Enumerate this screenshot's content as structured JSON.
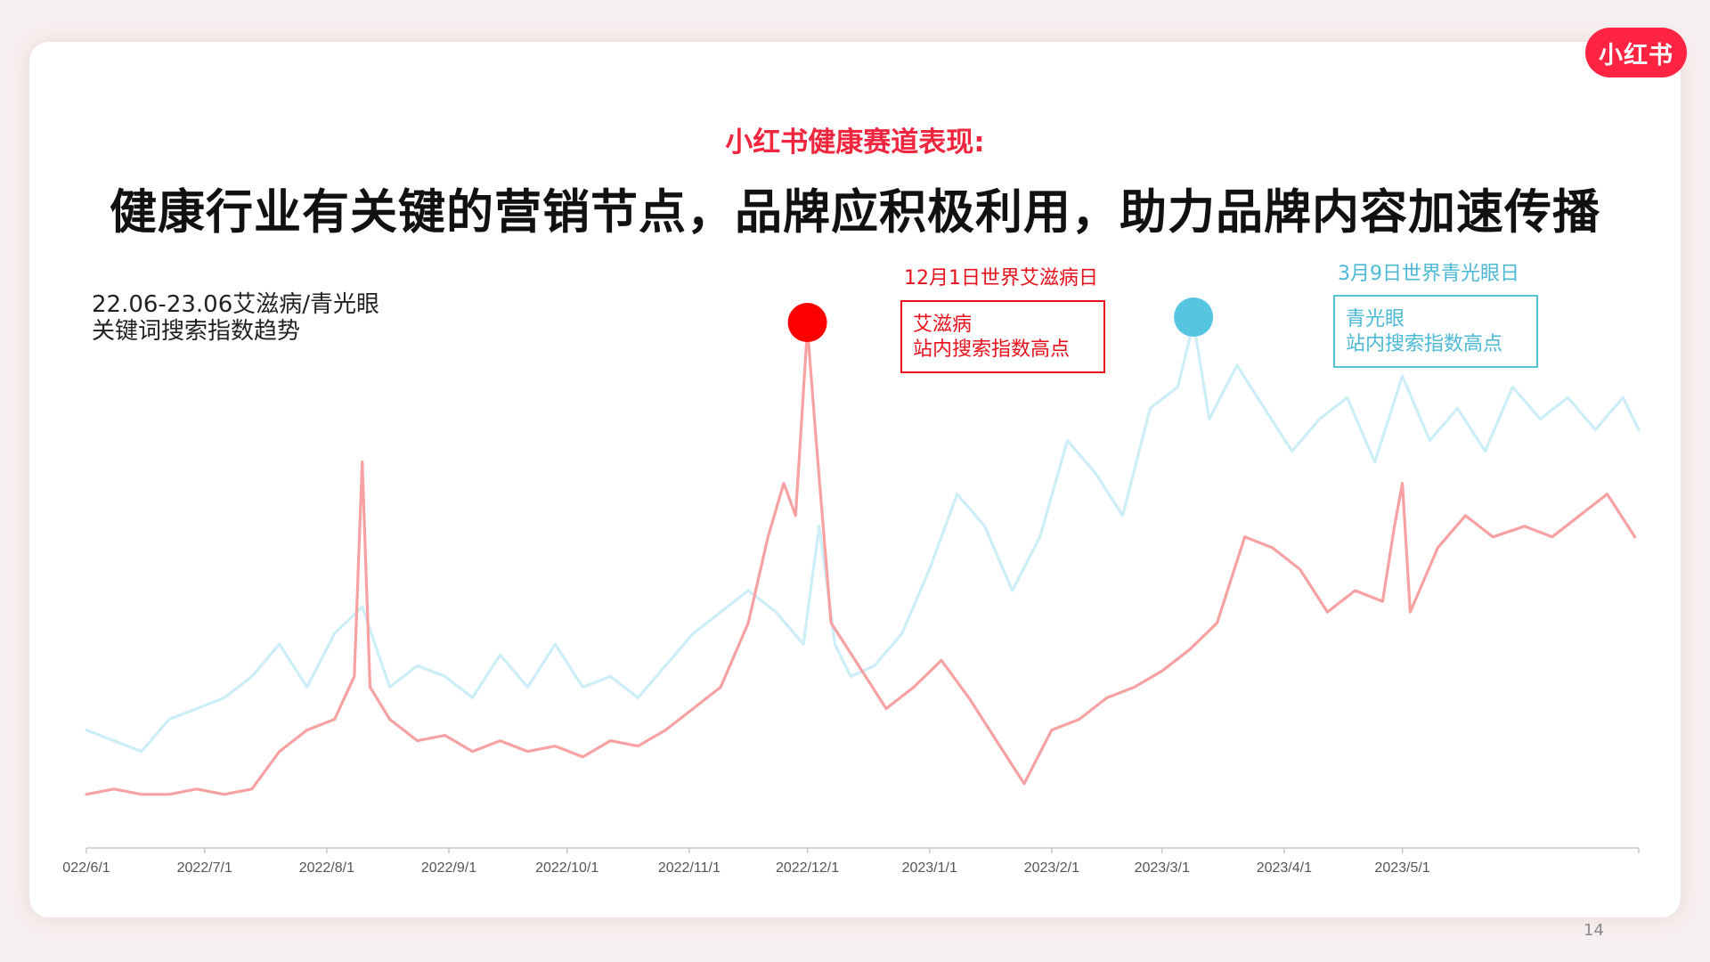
{
  "brand": {
    "logo_text": "小红书"
  },
  "header": {
    "subtitle": "小红书健康赛道表现:",
    "title": "健康行业有关键的营销节点，品牌应积极利用，助力品牌内容加速传播"
  },
  "chart_desc": [
    "22.06-23.06艾滋病/青光眼",
    "关键词搜索指数趋势"
  ],
  "annotations": [
    {
      "date_label": "12月1日世界艾滋病日",
      "box_lines": [
        "艾滋病",
        "站内搜索指数高点"
      ],
      "color": "#e8101a"
    },
    {
      "date_label": "3月9日世界青光眼日",
      "box_lines": [
        "青光眼",
        "站内搜索指数高点"
      ],
      "color": "#4bb9d6"
    }
  ],
  "page_number": "14",
  "chart_data": {
    "type": "line",
    "title": "22.06-23.06艾滋病/青光眼 关键词搜索指数趋势",
    "x_tick_labels": [
      "022/6/1",
      "2022/7/1",
      "2022/8/1",
      "2022/9/1",
      "2022/10/1",
      "2022/11/1",
      "2022/12/1",
      "2023/1/1",
      "2023/2/1",
      "2023/3/1",
      "2023/4/1",
      "2023/5/1"
    ],
    "x_ticks": [
      "2022-06-01",
      "2022-07-01",
      "2022-08-01",
      "2022-09-01",
      "2022-10-01",
      "2022-11-01",
      "2022-12-01",
      "2023-01-01",
      "2023-02-01",
      "2023-03-01",
      "2023-04-01",
      "2023-05-01"
    ],
    "xlim": [
      "2022-06-01",
      "2023-06-30"
    ],
    "ylim": [
      0,
      100
    ],
    "y_axis_visible": false,
    "grid": false,
    "legend": "none",
    "series": [
      {
        "color": "#f7a1a3",
        "dates": [
          "2022-06-01",
          "2022-06-08",
          "2022-06-15",
          "2022-06-22",
          "2022-06-29",
          "2022-07-06",
          "2022-07-13",
          "2022-07-20",
          "2022-07-27",
          "2022-08-03",
          "2022-08-08",
          "2022-08-10",
          "2022-08-12",
          "2022-08-17",
          "2022-08-24",
          "2022-08-31",
          "2022-09-07",
          "2022-09-14",
          "2022-09-21",
          "2022-09-28",
          "2022-10-05",
          "2022-10-12",
          "2022-10-19",
          "2022-10-26",
          "2022-11-02",
          "2022-11-09",
          "2022-11-16",
          "2022-11-21",
          "2022-11-25",
          "2022-11-28",
          "2022-12-01",
          "2022-12-03",
          "2022-12-07",
          "2022-12-14",
          "2022-12-21",
          "2022-12-28",
          "2023-01-04",
          "2023-01-11",
          "2023-01-18",
          "2023-01-25",
          "2023-02-01",
          "2023-02-08",
          "2023-02-15",
          "2023-02-22",
          "2023-03-01",
          "2023-03-08",
          "2023-03-15",
          "2023-03-22",
          "2023-03-29",
          "2023-04-05",
          "2023-04-12",
          "2023-04-19",
          "2023-04-26",
          "2023-04-29",
          "2023-05-01",
          "2023-05-03",
          "2023-05-10",
          "2023-05-17",
          "2023-05-24",
          "2023-06-01",
          "2023-06-08",
          "2023-06-15",
          "2023-06-22",
          "2023-06-29"
        ],
        "values": [
          10,
          11,
          10,
          10,
          11,
          10,
          11,
          18,
          22,
          24,
          32,
          72,
          30,
          24,
          20,
          21,
          18,
          20,
          18,
          19,
          17,
          20,
          19,
          22,
          26,
          30,
          42,
          58,
          68,
          62,
          97,
          78,
          42,
          34,
          26,
          30,
          35,
          28,
          20,
          12,
          22,
          24,
          28,
          30,
          33,
          37,
          42,
          58,
          56,
          52,
          44,
          48,
          46,
          60,
          68,
          44,
          56,
          62,
          58,
          60,
          58,
          62,
          66,
          58
        ]
      },
      {
        "color": "#cbeef7",
        "dates": [
          "2022-06-01",
          "2022-06-08",
          "2022-06-15",
          "2022-06-22",
          "2022-06-29",
          "2022-07-06",
          "2022-07-13",
          "2022-07-20",
          "2022-07-27",
          "2022-08-03",
          "2022-08-10",
          "2022-08-17",
          "2022-08-24",
          "2022-08-31",
          "2022-09-07",
          "2022-09-14",
          "2022-09-21",
          "2022-09-28",
          "2022-10-05",
          "2022-10-12",
          "2022-10-19",
          "2022-10-26",
          "2022-11-02",
          "2022-11-09",
          "2022-11-16",
          "2022-11-23",
          "2022-11-30",
          "2022-12-04",
          "2022-12-08",
          "2022-12-12",
          "2022-12-18",
          "2022-12-25",
          "2023-01-01",
          "2023-01-08",
          "2023-01-15",
          "2023-01-22",
          "2023-01-29",
          "2023-02-05",
          "2023-02-12",
          "2023-02-19",
          "2023-02-26",
          "2023-03-05",
          "2023-03-09",
          "2023-03-13",
          "2023-03-20",
          "2023-03-27",
          "2023-04-03",
          "2023-04-10",
          "2023-04-17",
          "2023-04-24",
          "2023-05-01",
          "2023-05-08",
          "2023-05-15",
          "2023-05-22",
          "2023-05-29",
          "2023-06-05",
          "2023-06-12",
          "2023-06-19",
          "2023-06-26",
          "2023-06-30"
        ],
        "values": [
          22,
          20,
          18,
          24,
          26,
          28,
          32,
          38,
          30,
          40,
          45,
          30,
          34,
          32,
          28,
          36,
          30,
          38,
          30,
          32,
          28,
          34,
          40,
          44,
          48,
          44,
          38,
          60,
          38,
          32,
          34,
          40,
          52,
          66,
          60,
          48,
          58,
          76,
          70,
          62,
          82,
          86,
          98,
          80,
          90,
          82,
          74,
          80,
          84,
          72,
          88,
          76,
          82,
          74,
          86,
          80,
          84,
          78,
          84,
          78
        ]
      }
    ],
    "markers": [
      {
        "series": 0,
        "date": "2022-12-01",
        "value": 97,
        "color": "#ff0000"
      },
      {
        "series": 1,
        "date": "2023-03-09",
        "value": 98,
        "color": "#55c5e0"
      }
    ]
  }
}
